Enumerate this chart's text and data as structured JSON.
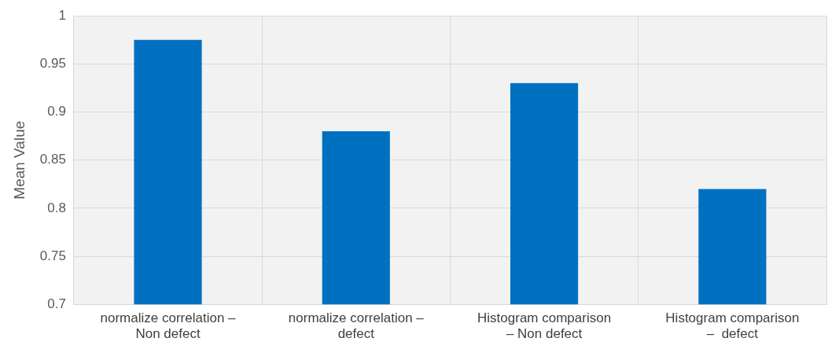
{
  "chart_data": {
    "type": "bar",
    "ylabel": "Mean Value",
    "categories": [
      "normalize correlation –\nNon defect",
      "normalize correlation –\ndefect",
      "Histogram comparison\n– Non defect",
      "Histogram comparison\n–  defect"
    ],
    "values": [
      0.975,
      0.88,
      0.93,
      0.82
    ],
    "color": "#0070c0",
    "ylim": [
      0.7,
      1
    ],
    "yticks": [
      0.7,
      0.75,
      0.8,
      0.85,
      0.9,
      0.95,
      1
    ],
    "grid": true
  }
}
